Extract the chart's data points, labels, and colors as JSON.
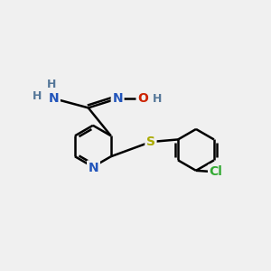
{
  "background_color": "#f0f0f0",
  "atom_colors": {
    "C": "#000000",
    "N": "#2255bb",
    "O": "#cc2200",
    "S": "#aaaa00",
    "Cl": "#33aa33",
    "H": "#557799"
  },
  "bond_color": "#000000",
  "bond_width": 1.8,
  "figsize": [
    3.0,
    3.0
  ],
  "dpi": 100
}
